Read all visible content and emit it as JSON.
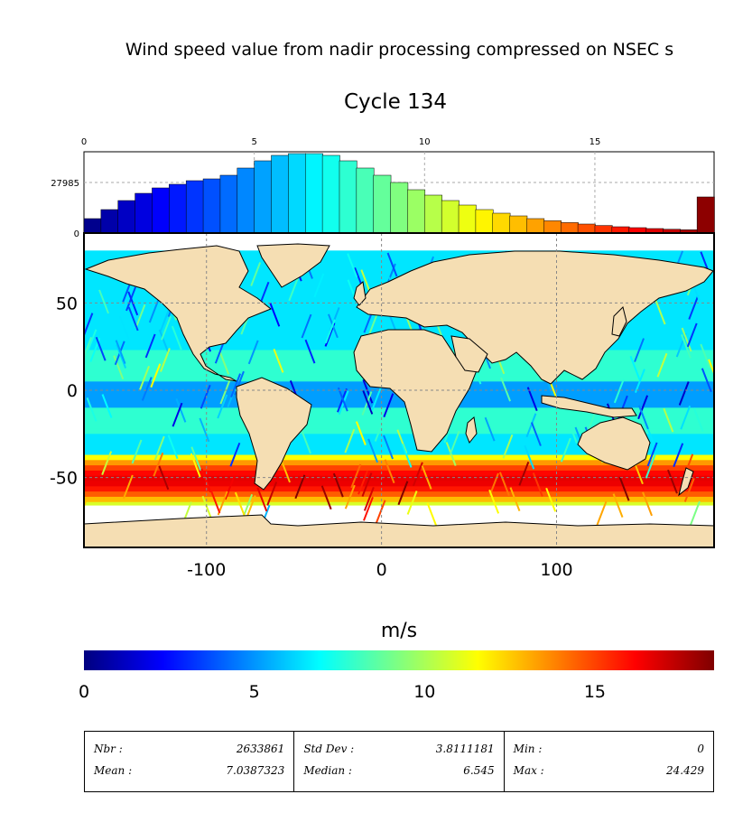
{
  "title": "Wind speed value from nadir processing compressed on NSEC s",
  "subtitle": "Cycle 134",
  "colorbar": {
    "label": "m/s",
    "ticks": [
      "0",
      "5",
      "10",
      "15"
    ],
    "range": [
      0,
      18.5
    ],
    "colors": [
      "#00007f",
      "#0000ff",
      "#0080ff",
      "#00ffff",
      "#80ff80",
      "#ffff00",
      "#ff8000",
      "#ff0000",
      "#7f0000"
    ]
  },
  "stats": {
    "cells": [
      {
        "label1": "Nbr :",
        "value1": "2633861",
        "label2": "Mean :",
        "value2": "7.0387323"
      },
      {
        "label1": "Std Dev :",
        "value1": "3.8111181",
        "label2": "Median :",
        "value2": "6.545"
      },
      {
        "label1": "Min :",
        "value1": "0",
        "label2": "Max :",
        "value2": "24.429"
      }
    ]
  },
  "chart_data": [
    {
      "type": "bar",
      "name": "histogram",
      "x_ticks": [
        "0",
        "5",
        "10",
        "15"
      ],
      "y_ticks": [
        "0",
        "27985"
      ],
      "xlim": [
        0,
        18.5
      ],
      "ylim": [
        0,
        45000
      ],
      "bin_width": 0.5,
      "bin_starts": [
        0,
        0.5,
        1,
        1.5,
        2,
        2.5,
        3,
        3.5,
        4,
        4.5,
        5,
        5.5,
        6,
        6.5,
        7,
        7.5,
        8,
        8.5,
        9,
        9.5,
        10,
        10.5,
        11,
        11.5,
        12,
        12.5,
        13,
        13.5,
        14,
        14.5,
        15,
        15.5,
        16,
        16.5,
        17,
        17.5,
        18
      ],
      "values": [
        8000,
        13000,
        18000,
        22000,
        25000,
        27000,
        29000,
        30000,
        32000,
        36000,
        40000,
        43000,
        44000,
        44000,
        43000,
        40000,
        36000,
        32000,
        28000,
        24000,
        21000,
        18000,
        15500,
        13000,
        11000,
        9500,
        8000,
        6800,
        5800,
        5000,
        4200,
        3500,
        3000,
        2500,
        2100,
        1800,
        20000
      ]
    },
    {
      "type": "heatmap",
      "name": "world map",
      "x_ticks": [
        "-100",
        "0",
        "100"
      ],
      "y_ticks": [
        "50",
        "0",
        "-50"
      ],
      "xlim": [
        -170,
        190
      ],
      "ylim": [
        -90,
        90
      ],
      "grid": true,
      "colorbar_label": "m/s"
    }
  ]
}
